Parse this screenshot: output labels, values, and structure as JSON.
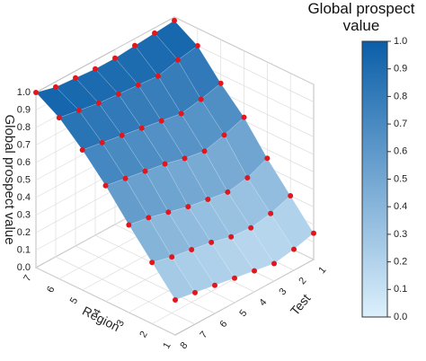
{
  "chart_data": {
    "type": "surface3d",
    "xlabel": "Region",
    "ylabel": "Test",
    "zlabel": "Global prospect value",
    "colorbar_title": "Global prospect value",
    "regions": [
      1,
      2,
      3,
      4,
      5,
      6,
      7
    ],
    "tests": [
      1,
      2,
      3,
      4,
      5,
      6,
      7,
      8
    ],
    "values": [
      [
        0.15,
        0.12,
        0.1,
        0.12,
        0.14,
        0.16,
        0.18,
        0.2
      ],
      [
        0.3,
        0.26,
        0.24,
        0.25,
        0.28,
        0.3,
        0.32,
        0.35
      ],
      [
        0.45,
        0.4,
        0.38,
        0.4,
        0.42,
        0.45,
        0.48,
        0.5
      ],
      [
        0.62,
        0.58,
        0.55,
        0.57,
        0.6,
        0.62,
        0.64,
        0.66
      ],
      [
        0.75,
        0.72,
        0.7,
        0.72,
        0.74,
        0.76,
        0.78,
        0.8
      ],
      [
        0.9,
        0.88,
        0.85,
        0.86,
        0.87,
        0.88,
        0.9,
        0.92
      ],
      [
        0.98,
        0.97,
        0.96,
        0.95,
        0.95,
        0.96,
        0.97,
        1.0
      ]
    ],
    "zlim": [
      0,
      1
    ],
    "zticks": [
      {
        "value": 0,
        "label": "0.0"
      },
      {
        "value": 0.1,
        "label": "0.1"
      },
      {
        "value": 0.2,
        "label": "0.2"
      },
      {
        "value": 0.3,
        "label": "0.3"
      },
      {
        "value": 0.4,
        "label": "0.4"
      },
      {
        "value": 0.5,
        "label": "0.5"
      },
      {
        "value": 0.6,
        "label": "0.6"
      },
      {
        "value": 0.7,
        "label": "0.7"
      },
      {
        "value": 0.8,
        "label": "0.8"
      },
      {
        "value": 0.9,
        "label": "0.9"
      },
      {
        "value": 1,
        "label": "1.0"
      }
    ],
    "colorscale": [
      "#dcf0fc",
      "#0a5ea8"
    ],
    "point_color": "#e3161b",
    "grid": true
  }
}
